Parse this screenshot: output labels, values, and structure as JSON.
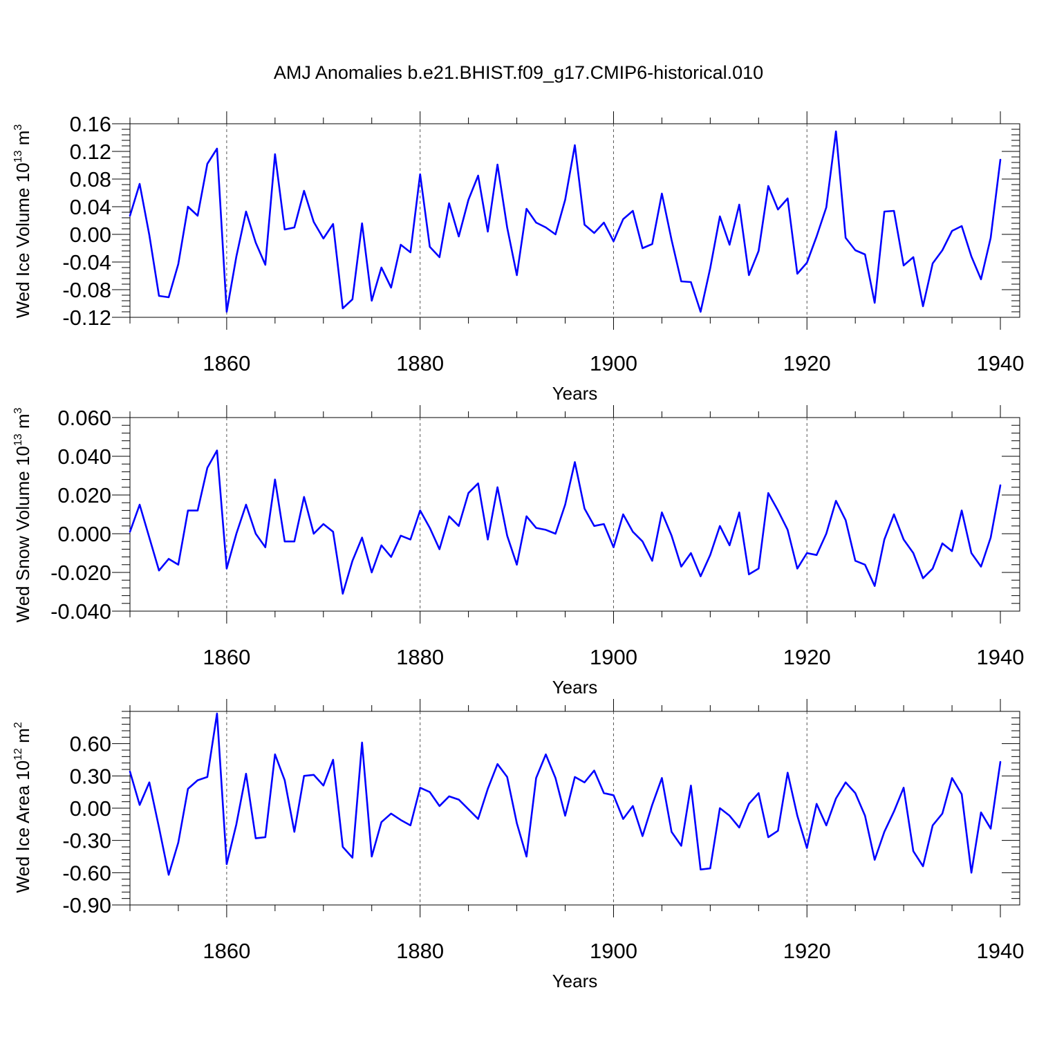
{
  "title": "AMJ Anomalies b.e21.BHIST.f09_g17.CMIP6-historical.010",
  "colors": {
    "series": "#0000ff",
    "frame": "#000000",
    "grid": "#555555"
  },
  "chart_data": [
    {
      "type": "line",
      "name": "Wed Ice Volume",
      "ylabel": {
        "main": "Wed Ice Volume 10",
        "sup": "13",
        "unit": " m",
        "unit_sup": "3"
      },
      "xlabel": "Years",
      "xlim": [
        1850,
        1942
      ],
      "ylim": [
        -0.12,
        0.16
      ],
      "y_ticks": [
        "-0.12",
        "-0.08",
        "-0.04",
        "0.00",
        "0.04",
        "0.08",
        "0.12",
        "0.16"
      ],
      "x_ticks": [
        "1860",
        "1880",
        "1900",
        "1920",
        "1940"
      ],
      "grid": "dashed vertical at 1860, 1880, 1900, 1920",
      "x_start": 1850,
      "values": [
        0.027,
        0.073,
        -0.001,
        -0.089,
        -0.091,
        -0.043,
        0.04,
        0.027,
        0.102,
        0.124,
        -0.112,
        -0.032,
        0.033,
        -0.012,
        -0.044,
        0.116,
        0.007,
        0.01,
        0.063,
        0.018,
        -0.006,
        0.015,
        -0.107,
        -0.094,
        0.016,
        -0.096,
        -0.048,
        -0.077,
        -0.015,
        -0.026,
        0.087,
        -0.018,
        -0.033,
        0.045,
        -0.003,
        0.05,
        0.085,
        0.004,
        0.101,
        0.01,
        -0.059,
        0.037,
        0.017,
        0.01,
        0.0,
        0.05,
        0.129,
        0.014,
        0.002,
        0.017,
        -0.01,
        0.022,
        0.034,
        -0.02,
        -0.014,
        0.059,
        -0.008,
        -0.068,
        -0.069,
        -0.112,
        -0.049,
        0.026,
        -0.015,
        0.043,
        -0.059,
        -0.024,
        0.07,
        0.036,
        0.052,
        -0.057,
        -0.041,
        -0.003,
        0.039,
        0.149,
        -0.005,
        -0.023,
        -0.029,
        -0.099,
        0.033,
        0.034,
        -0.045,
        -0.033,
        -0.104,
        -0.042,
        -0.023,
        0.005,
        0.012,
        -0.032,
        -0.065,
        -0.005,
        0.108
      ]
    },
    {
      "type": "line",
      "name": "Wed Snow Volume",
      "ylabel": {
        "main": "Wed Snow Volume 10",
        "sup": "13",
        "unit": " m",
        "unit_sup": "3"
      },
      "xlabel": "Years",
      "xlim": [
        1850,
        1942
      ],
      "ylim": [
        -0.04,
        0.06
      ],
      "y_ticks": [
        "-0.040",
        "-0.020",
        "0.000",
        "0.020",
        "0.040",
        "0.060"
      ],
      "x_ticks": [
        "1860",
        "1880",
        "1900",
        "1920",
        "1940"
      ],
      "grid": "dashed vertical at 1860, 1880, 1900, 1920",
      "x_start": 1850,
      "values": [
        0.001,
        0.015,
        -0.002,
        -0.019,
        -0.013,
        -0.016,
        0.012,
        0.012,
        0.034,
        0.043,
        -0.018,
        0.0,
        0.015,
        0.0,
        -0.007,
        0.028,
        -0.004,
        -0.004,
        0.019,
        0.0,
        0.005,
        0.001,
        -0.031,
        -0.014,
        -0.002,
        -0.02,
        -0.006,
        -0.012,
        -0.001,
        -0.003,
        0.012,
        0.003,
        -0.008,
        0.009,
        0.004,
        0.021,
        0.026,
        -0.003,
        0.024,
        -0.001,
        -0.016,
        0.009,
        0.003,
        0.002,
        0.0,
        0.015,
        0.037,
        0.013,
        0.004,
        0.005,
        -0.007,
        0.01,
        0.001,
        -0.004,
        -0.014,
        0.011,
        -0.001,
        -0.017,
        -0.01,
        -0.022,
        -0.011,
        0.004,
        -0.006,
        0.011,
        -0.021,
        -0.018,
        0.021,
        0.012,
        0.002,
        -0.018,
        -0.01,
        -0.011,
        0.0,
        0.017,
        0.007,
        -0.014,
        -0.016,
        -0.027,
        -0.003,
        0.01,
        -0.003,
        -0.01,
        -0.023,
        -0.018,
        -0.005,
        -0.009,
        0.012,
        -0.01,
        -0.017,
        -0.002,
        0.025
      ]
    },
    {
      "type": "line",
      "name": "Wed Ice Area",
      "ylabel": {
        "main": "Wed Ice Area 10",
        "sup": "12",
        "unit": " m",
        "unit_sup": "2"
      },
      "xlabel": "Years",
      "xlim": [
        1850,
        1942
      ],
      "ylim": [
        -0.9,
        0.9
      ],
      "y_ticks": [
        "-0.90",
        "-0.60",
        "-0.30",
        "0.00",
        "0.30",
        "0.60"
      ],
      "x_ticks": [
        "1860",
        "1880",
        "1900",
        "1920",
        "1940"
      ],
      "grid": "dashed vertical at 1860, 1880, 1900, 1920",
      "x_start": 1850,
      "values": [
        0.34,
        0.03,
        0.24,
        -0.18,
        -0.62,
        -0.32,
        0.18,
        0.26,
        0.29,
        0.88,
        -0.52,
        -0.15,
        0.32,
        -0.28,
        -0.27,
        0.5,
        0.26,
        -0.22,
        0.3,
        0.31,
        0.21,
        0.45,
        -0.36,
        -0.46,
        0.61,
        -0.45,
        -0.13,
        -0.05,
        -0.11,
        -0.16,
        0.19,
        0.15,
        0.02,
        0.11,
        0.08,
        -0.01,
        -0.1,
        0.18,
        0.41,
        0.29,
        -0.14,
        -0.45,
        0.28,
        0.5,
        0.28,
        -0.07,
        0.29,
        0.24,
        0.35,
        0.14,
        0.12,
        -0.1,
        0.02,
        -0.26,
        0.03,
        0.28,
        -0.22,
        -0.35,
        0.21,
        -0.57,
        -0.56,
        0.0,
        -0.07,
        -0.18,
        0.04,
        0.14,
        -0.27,
        -0.21,
        0.33,
        -0.07,
        -0.37,
        0.04,
        -0.16,
        0.09,
        0.24,
        0.14,
        -0.07,
        -0.48,
        -0.22,
        -0.03,
        0.19,
        -0.4,
        -0.54,
        -0.16,
        -0.05,
        0.28,
        0.13,
        -0.6,
        -0.04,
        -0.19,
        0.43
      ]
    }
  ]
}
